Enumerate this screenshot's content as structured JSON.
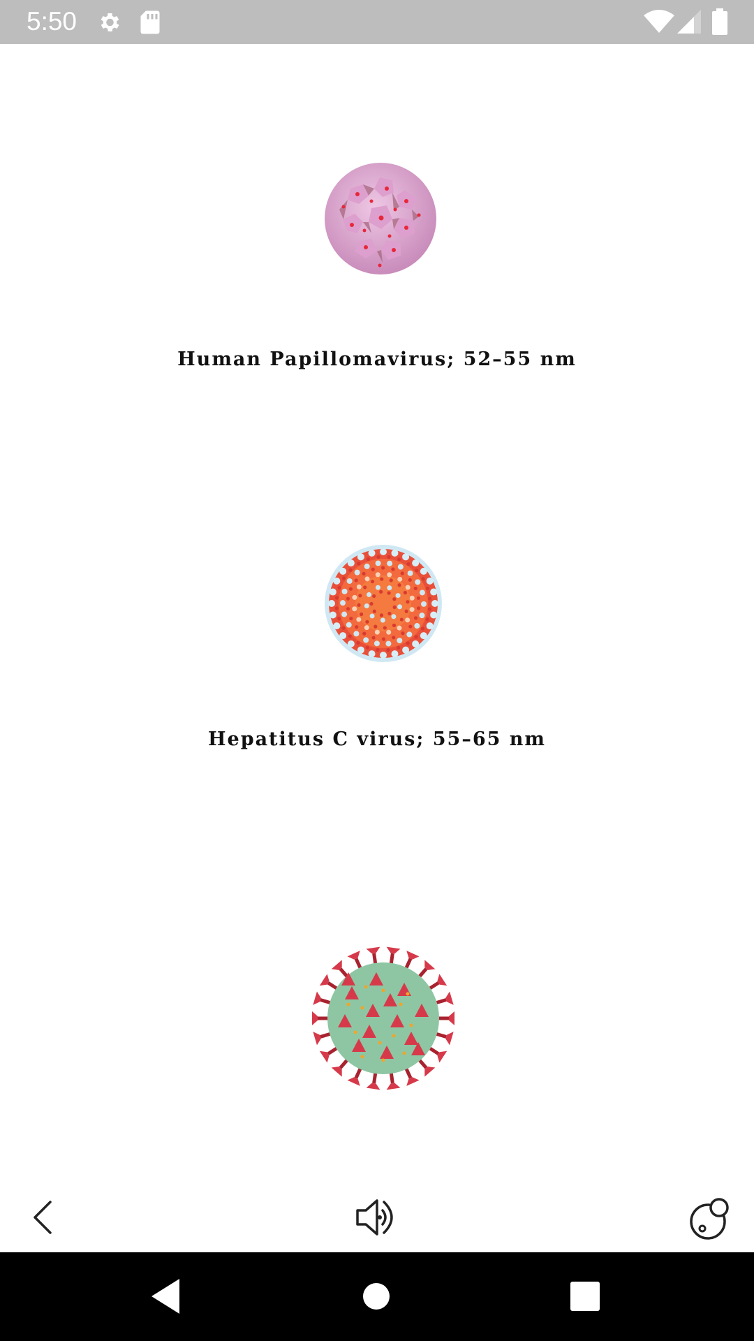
{
  "status_bar": {
    "time": "5:50",
    "icons": [
      "gear-icon",
      "sd-card-icon",
      "wifi-icon",
      "signal-icon",
      "battery-icon"
    ]
  },
  "viruses": [
    {
      "label": "Human Papillomavirus; 52–55 nm",
      "image": "papillomavirus-image"
    },
    {
      "label": "Hepatitus C virus; 55–65 nm",
      "image": "hepatitis-c-image"
    },
    {
      "label": "",
      "image": "coronavirus-image"
    }
  ],
  "toolbar": {
    "icons": [
      "back-chevron-icon",
      "speaker-icon",
      "size-compare-icon"
    ]
  },
  "nav_bar": {
    "icons": [
      "nav-back-icon",
      "nav-home-icon",
      "nav-recents-icon"
    ]
  },
  "colors": {
    "status_bar": "#bdbdbd",
    "nav_bar": "#000000",
    "papilloma": "#e3b5d6",
    "hepatitis": "#f26a3d",
    "corona_body": "#8ec6a4",
    "corona_spike": "#d63a4a"
  }
}
